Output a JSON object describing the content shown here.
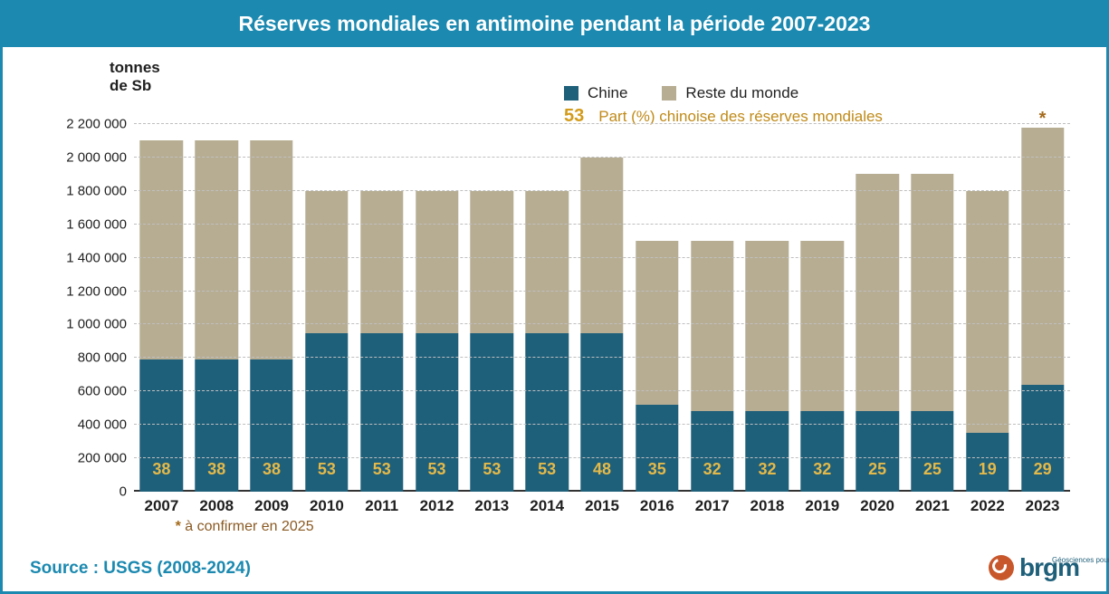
{
  "title": "Réserves mondiales en antimoine pendant la période 2007-2023",
  "y_axis": {
    "label_line1": "tonnes",
    "label_line2": "de Sb",
    "min": 0,
    "max": 2200000,
    "tick_step": 200000,
    "tick_format": "space_thousands"
  },
  "legend": {
    "series_a": "Chine",
    "series_b": "Reste du monde",
    "pct_example": "53",
    "pct_text": "Part (%) chinoise des réserves mondiales"
  },
  "colors": {
    "frame": "#1b89b0",
    "title_bg": "#1b89b0",
    "title_text": "#ffffff",
    "china": "#1e5f7a",
    "rest": "#b7ad93",
    "pct_label": "#e3b94a",
    "grid": "#bfbfbf",
    "axis_text": "#1f1f1f",
    "footnote": "#8a5a22",
    "source": "#1b89b0",
    "asterisk": "#a46a1a",
    "brgm_icon": "#c8572c",
    "brgm_text": "#1e5f7a"
  },
  "bar_width_ratio": 0.78,
  "years": [
    "2007",
    "2008",
    "2009",
    "2010",
    "2011",
    "2012",
    "2013",
    "2014",
    "2015",
    "2016",
    "2017",
    "2018",
    "2019",
    "2020",
    "2021",
    "2022",
    "2023"
  ],
  "china": [
    790000,
    790000,
    790000,
    950000,
    950000,
    950000,
    950000,
    950000,
    950000,
    520000,
    480000,
    480000,
    480000,
    480000,
    480000,
    350000,
    640000
  ],
  "rest": [
    1310000,
    1310000,
    1310000,
    850000,
    850000,
    850000,
    850000,
    850000,
    1050000,
    980000,
    1020000,
    1020000,
    1020000,
    1420000,
    1420000,
    1450000,
    1540000
  ],
  "pct": [
    38,
    38,
    38,
    53,
    53,
    53,
    53,
    53,
    48,
    35,
    32,
    32,
    32,
    25,
    25,
    19,
    29
  ],
  "asterisk_on_year": "2023",
  "footnote_marker": "*",
  "footnote_text": "à confirmer en 2025",
  "source": "Source : USGS (2008-2024)",
  "brgm": {
    "text": "brgm",
    "tagline": "Géosciences pour une Terre durable"
  },
  "fonts": {
    "title_size": 23,
    "tick_size": 15,
    "xlabel_size": 17,
    "pct_size": 18,
    "legend_size": 17,
    "source_size": 19
  }
}
